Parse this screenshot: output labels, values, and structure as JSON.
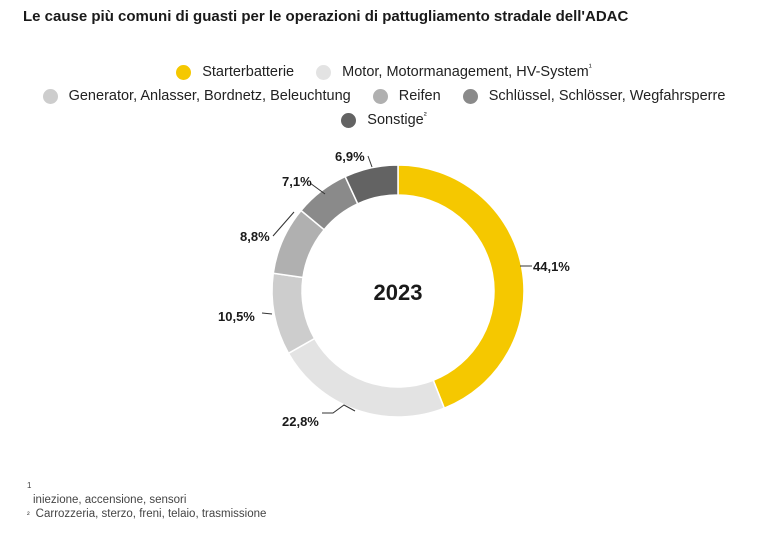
{
  "title": "Le cause più comuni di guasti per le operazioni di pattugliamento stradale dell'ADAC",
  "colors": {
    "starter": "#f5c800",
    "motor": "#e3e3e3",
    "generator": "#cdcdcd",
    "reifen": "#b0b0b0",
    "schluessel": "#8a8a8a",
    "sonstige": "#636363"
  },
  "chart_data": {
    "type": "pie",
    "donut": true,
    "center_label": "2023",
    "title": "Le cause più comuni di guasti per le operazioni di pattugliamento stradale dell'ADAC",
    "legend_position": "top",
    "series": [
      {
        "name": "Starterbatterie",
        "sup": "",
        "value": 44.1,
        "label": "44,1%",
        "color": "#f5c800"
      },
      {
        "name": "Motor, Motormanagement, HV-System",
        "sup": "¹",
        "value": 22.8,
        "label": "22,8%",
        "color": "#e3e3e3"
      },
      {
        "name": "Generator, Anlasser, Bordnetz, Beleuchtung",
        "sup": "",
        "value": 10.5,
        "label": "10,5%",
        "color": "#cdcdcd"
      },
      {
        "name": "Reifen",
        "sup": "",
        "value": 8.8,
        "label": "8,8%",
        "color": "#b0b0b0"
      },
      {
        "name": "Schlüssel, Schlösser, Wegfahrsperre",
        "sup": "",
        "value": 7.1,
        "label": "7,1%",
        "color": "#8a8a8a"
      },
      {
        "name": "Sonstige",
        "sup": "²",
        "value": 6.9,
        "label": "6,9%",
        "color": "#636363"
      }
    ]
  },
  "footnotes": [
    {
      "marker": "1",
      "text": "iniezione, accensione, sensori"
    },
    {
      "marker": "²",
      "text": "Carrozzeria, sterzo, freni, telaio, trasmissione"
    }
  ]
}
